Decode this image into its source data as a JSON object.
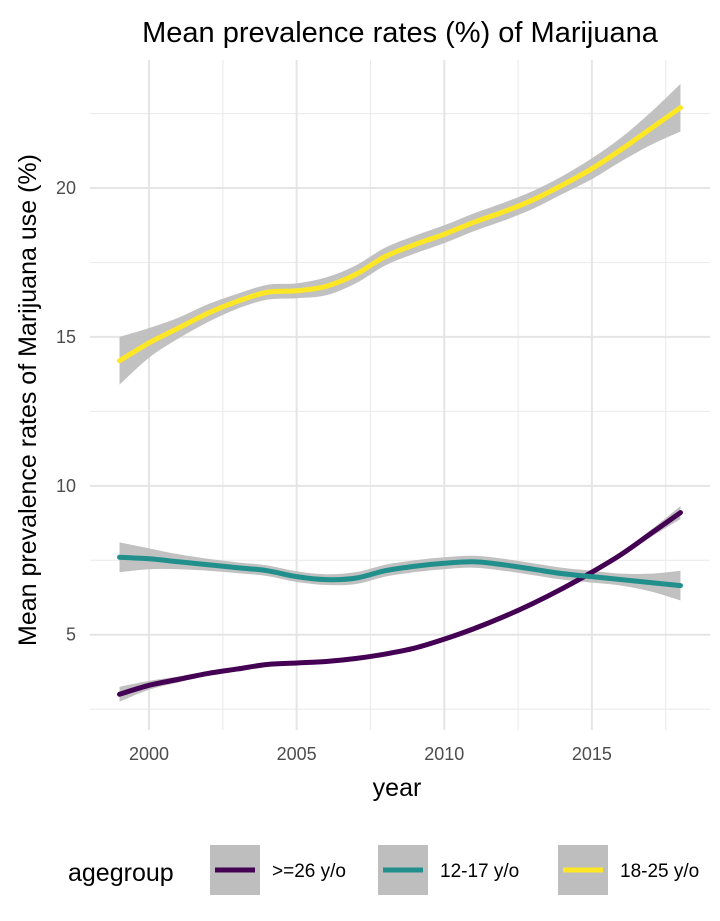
{
  "chart_data": {
    "type": "line",
    "title": "Mean prevalence rates (%) of Marijuana",
    "xlabel": "year",
    "ylabel": "Mean prevalence rates of Marijuana use (%)",
    "xlim": [
      1998,
      2019
    ],
    "ylim": [
      1.8,
      24.3
    ],
    "x_ticks": [
      2000,
      2005,
      2010,
      2015
    ],
    "y_ticks": [
      5,
      10,
      15,
      20
    ],
    "grid": true,
    "legend": {
      "title": "agegroup",
      "placement": "bottom"
    },
    "x": [
      1999,
      2000,
      2001,
      2002,
      2003,
      2004,
      2005,
      2006,
      2007,
      2008,
      2009,
      2010,
      2011,
      2012,
      2013,
      2014,
      2015,
      2016,
      2017,
      2018
    ],
    "series": [
      {
        "name": ">=26 y/o",
        "color": "#440154",
        "values": [
          3.0,
          3.3,
          3.5,
          3.7,
          3.85,
          4.0,
          4.05,
          4.1,
          4.2,
          4.35,
          4.55,
          4.85,
          5.2,
          5.6,
          6.05,
          6.55,
          7.1,
          7.7,
          8.4,
          9.1
        ],
        "ci_lower": [
          2.75,
          3.15,
          3.4,
          3.62,
          3.78,
          3.94,
          3.99,
          4.04,
          4.14,
          4.29,
          4.49,
          4.79,
          5.14,
          5.54,
          5.98,
          6.48,
          7.03,
          7.62,
          8.28,
          8.88
        ],
        "ci_upper": [
          3.25,
          3.45,
          3.6,
          3.78,
          3.92,
          4.06,
          4.11,
          4.16,
          4.26,
          4.41,
          4.61,
          4.91,
          5.26,
          5.66,
          6.12,
          6.62,
          7.17,
          7.78,
          8.52,
          9.32
        ]
      },
      {
        "name": "12-17 y/o",
        "color": "#21908c",
        "values": [
          7.6,
          7.55,
          7.45,
          7.35,
          7.25,
          7.15,
          6.95,
          6.85,
          6.9,
          7.15,
          7.3,
          7.4,
          7.45,
          7.35,
          7.2,
          7.05,
          6.95,
          6.85,
          6.75,
          6.65
        ],
        "ci_lower": [
          7.1,
          7.2,
          7.2,
          7.15,
          7.07,
          6.97,
          6.77,
          6.67,
          6.7,
          6.95,
          7.1,
          7.2,
          7.25,
          7.15,
          7.0,
          6.85,
          6.75,
          6.65,
          6.45,
          6.15
        ],
        "ci_upper": [
          8.1,
          7.9,
          7.7,
          7.55,
          7.43,
          7.33,
          7.13,
          7.03,
          7.1,
          7.35,
          7.5,
          7.6,
          7.65,
          7.55,
          7.4,
          7.25,
          7.15,
          7.05,
          7.05,
          7.15
        ]
      },
      {
        "name": "18-25 y/o",
        "color": "#fde725",
        "values": [
          14.2,
          14.8,
          15.3,
          15.8,
          16.2,
          16.5,
          16.55,
          16.7,
          17.1,
          17.7,
          18.1,
          18.45,
          18.85,
          19.2,
          19.6,
          20.1,
          20.65,
          21.3,
          22.0,
          22.7
        ],
        "ci_lower": [
          13.4,
          14.3,
          14.95,
          15.5,
          15.95,
          16.25,
          16.3,
          16.4,
          16.8,
          17.4,
          17.8,
          18.15,
          18.55,
          18.9,
          19.3,
          19.8,
          20.3,
          20.9,
          21.45,
          21.9
        ],
        "ci_upper": [
          15.0,
          15.3,
          15.65,
          16.1,
          16.45,
          16.75,
          16.8,
          17.0,
          17.4,
          18.0,
          18.4,
          18.75,
          19.15,
          19.5,
          19.9,
          20.4,
          21.0,
          21.7,
          22.55,
          23.5
        ]
      }
    ]
  }
}
